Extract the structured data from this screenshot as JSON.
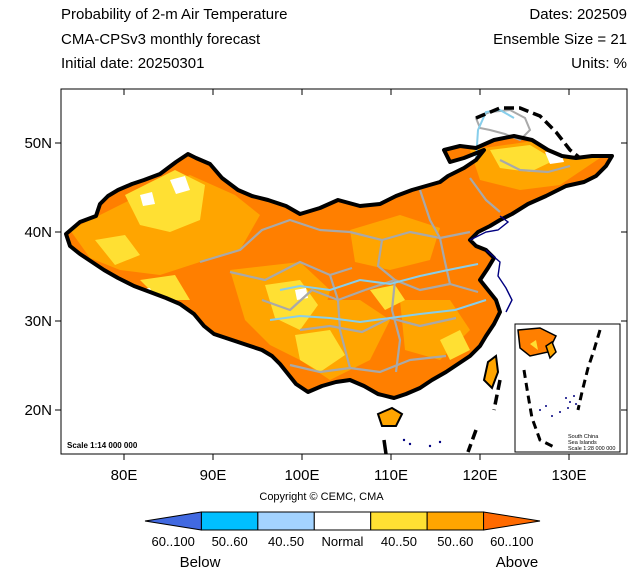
{
  "header": {
    "title": "Probability of 2-m Air Temperature",
    "subtitle": "CMA-CPSv3 monthly forecast",
    "initial_date": "Initial date: 20250301",
    "dates": "Dates: 202509",
    "ensemble": "Ensemble Size = 21",
    "units": "Units: %"
  },
  "map": {
    "lon_range": [
      73,
      136
    ],
    "lat_range": [
      15,
      55
    ],
    "lat_ticks": [
      "50N",
      "40N",
      "30N",
      "20N"
    ],
    "lon_ticks": [
      "80E",
      "90E",
      "100E",
      "110E",
      "120E",
      "130E"
    ],
    "scale_main": "Scale 1:14 000 000",
    "inset_lines": [
      "South China",
      "Sea Islands",
      "Scale 1:28 000 000"
    ],
    "copyright": "Copyright © CEMC, CMA"
  },
  "colorbar": {
    "colors": [
      "#4169e1",
      "#00bfff",
      "#a3d3ff",
      "#ffffff",
      "#ffe033",
      "#ffa500",
      "#ff6a00"
    ],
    "labels": [
      "60..100",
      "50..60",
      "40..50",
      "Normal",
      "40..50",
      "50..60",
      "60..100"
    ],
    "below": "Below",
    "above": "Above"
  }
}
